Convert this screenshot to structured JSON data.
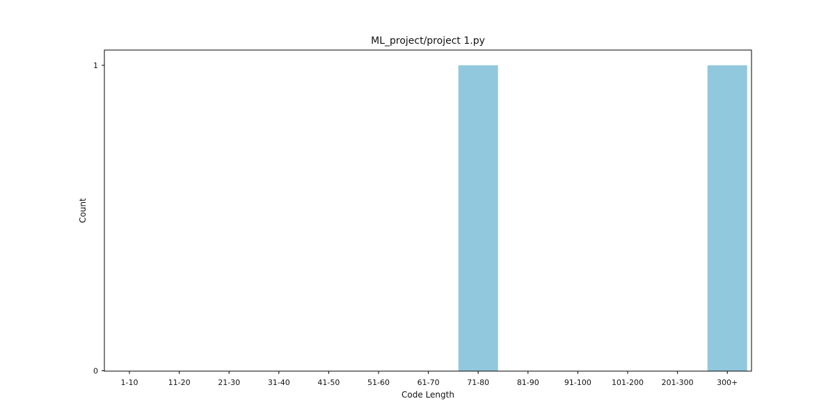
{
  "chart_data": {
    "type": "bar",
    "title": "ML_project/project 1.py",
    "xlabel": "Code Length",
    "ylabel": "Count",
    "categories": [
      "1-10",
      "11-20",
      "21-30",
      "31-40",
      "41-50",
      "51-60",
      "61-70",
      "71-80",
      "81-90",
      "91-100",
      "101-200",
      "201-300",
      "300+"
    ],
    "values": [
      0,
      0,
      0,
      0,
      0,
      0,
      0,
      1,
      0,
      0,
      0,
      0,
      1
    ],
    "ylim": [
      0,
      1
    ],
    "yticks": [
      "0",
      "1"
    ],
    "bar_color": "#92c8dd",
    "grid": false,
    "legend": "none"
  }
}
